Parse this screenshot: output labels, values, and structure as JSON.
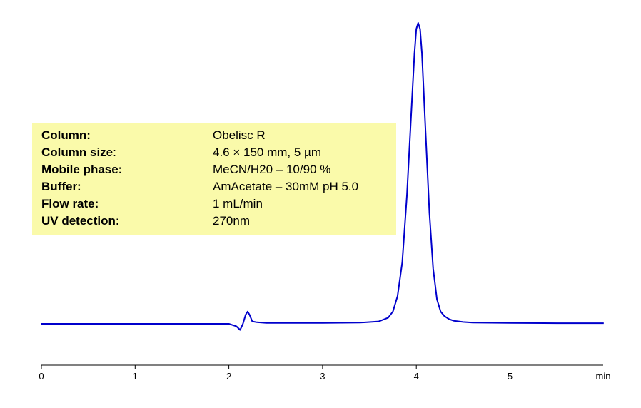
{
  "chart_data": {
    "type": "line",
    "title": "",
    "xlabel": "min",
    "ylabel": "",
    "xlim": [
      0,
      6
    ],
    "ylim": [
      -0.05,
      1.0
    ],
    "x_ticks": [
      0,
      1,
      2,
      3,
      4,
      5
    ],
    "grid": false,
    "legend": "none",
    "series": [
      {
        "color": "#0000cc",
        "x": [
          0.0,
          0.5,
          1.0,
          1.5,
          2.0,
          2.08,
          2.12,
          2.15,
          2.18,
          2.2,
          2.22,
          2.25,
          2.3,
          2.4,
          2.6,
          3.0,
          3.4,
          3.6,
          3.7,
          3.75,
          3.8,
          3.85,
          3.9,
          3.94,
          3.98,
          4.0,
          4.02,
          4.04,
          4.06,
          4.1,
          4.14,
          4.18,
          4.22,
          4.26,
          4.3,
          4.35,
          4.4,
          4.5,
          4.6,
          5.0,
          5.5,
          6.0
        ],
        "y": [
          0.0,
          0.0,
          0.0,
          0.0,
          0.0,
          -0.008,
          -0.02,
          0.0,
          0.03,
          0.04,
          0.03,
          0.008,
          0.005,
          0.003,
          0.003,
          0.003,
          0.004,
          0.008,
          0.02,
          0.04,
          0.09,
          0.2,
          0.42,
          0.65,
          0.88,
          0.96,
          0.98,
          0.96,
          0.88,
          0.62,
          0.36,
          0.18,
          0.08,
          0.04,
          0.025,
          0.015,
          0.01,
          0.006,
          0.004,
          0.003,
          0.002,
          0.002
        ]
      }
    ]
  },
  "info": {
    "rows": [
      {
        "label": "Column:",
        "label_suffix": "",
        "value": "Obelisc R"
      },
      {
        "label": "Column size",
        "label_suffix": ":",
        "value": "4.6 × 150 mm, 5 µm"
      },
      {
        "label": "Mobile phase:",
        "label_suffix": "",
        "value": "MeCN/H20 – 10/90 %"
      },
      {
        "label": "Buffer:",
        "label_suffix": "",
        "value": "AmAcetate – 30mM pH 5.0"
      },
      {
        "label": "Flow rate:",
        "label_suffix": "",
        "value": "1 mL/min"
      },
      {
        "label": "UV detection:",
        "label_suffix": "",
        "value": "270nm"
      }
    ]
  }
}
